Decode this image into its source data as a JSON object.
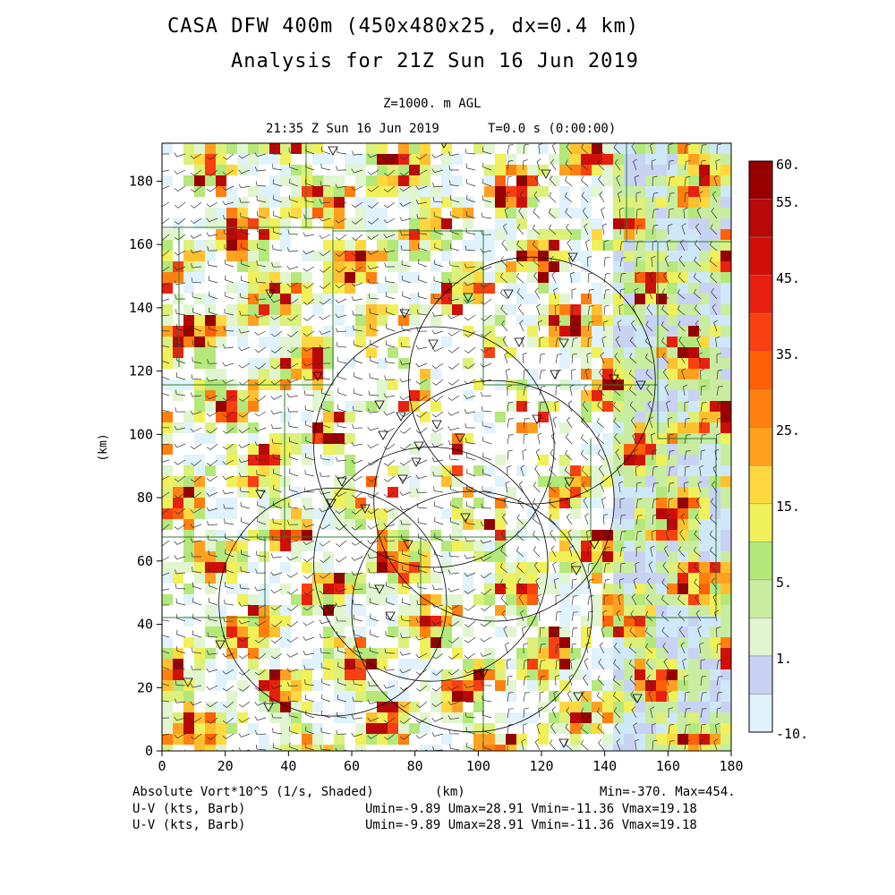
{
  "header": {
    "title_line1": "CASA DFW 400m (450x480x25, dx=0.4 km)",
    "title_line2": "Analysis for 21Z Sun 16 Jun 2019",
    "level": "Z=1000. m AGL",
    "valid_time": "21:35 Z Sun 16 Jun 2019",
    "forecast_time": "T=0.0 s (0:00:00)"
  },
  "axes": {
    "x_label": "(km)",
    "y_label": "(km)",
    "x_ticks": [
      "0",
      "20",
      "40",
      "60",
      "80",
      "100",
      "120",
      "140",
      "160",
      "180"
    ],
    "y_ticks": [
      "0",
      "20",
      "40",
      "60",
      "80",
      "100",
      "120",
      "140",
      "160",
      "180"
    ],
    "x_range": [
      0,
      180
    ],
    "y_range": [
      0,
      192
    ]
  },
  "colorbar": {
    "labels": [
      "60.",
      "55.",
      "45.",
      "35.",
      "25.",
      "15.",
      "5.",
      "1.",
      "-10."
    ],
    "colors": [
      "#ffffff",
      "#e0f2fb",
      "#cfe8f7",
      "#c8d2f2",
      "#e0f5d0",
      "#c8eca0",
      "#b4e87a",
      "#dcf07a",
      "#f0f05a",
      "#ffd840",
      "#ffc030",
      "#ffa020",
      "#ff8010",
      "#ff6008",
      "#f84010",
      "#e82010",
      "#d01008",
      "#b80808",
      "#980000"
    ]
  },
  "footer": {
    "field_label": "Absolute Vort*10^5 (1/s, Shaded)",
    "xunit": "(km)",
    "minmax": "Min=-370. Max=454.",
    "uv_label_1": "U-V (kts, Barb)",
    "uv_stats_1": "Umin=-9.89 Umax=28.91 Vmin=-11.36 Vmax=19.18",
    "uv_label_2": "U-V (kts, Barb)",
    "uv_stats_2": "Umin=-9.89 Umax=28.91 Vmin=-11.36 Vmax=19.18"
  },
  "map": {
    "radar_ranges": [
      {
        "cx": 54,
        "cy": 47,
        "r": 36
      },
      {
        "cx": 98,
        "cy": 44,
        "r": 38
      },
      {
        "cx": 117,
        "cy": 117,
        "r": 39
      },
      {
        "cx": 86,
        "cy": 96,
        "r": 38
      },
      {
        "cx": 105,
        "cy": 79,
        "r": 38
      },
      {
        "cx": 85,
        "cy": 59,
        "r": 37
      }
    ]
  }
}
